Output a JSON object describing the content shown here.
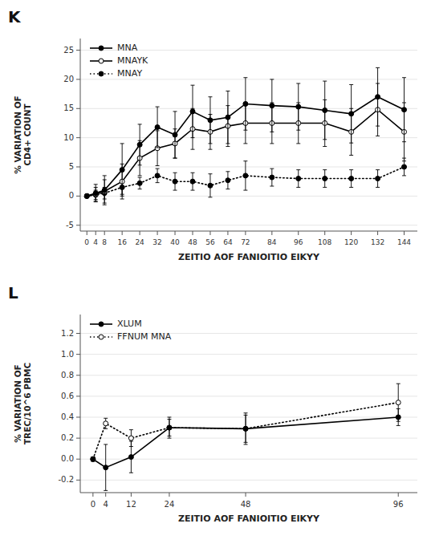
{
  "chart_data": [
    {
      "type": "line",
      "title": "K",
      "x_label": "ZEITIO AOF FANIOITIO EIKYY",
      "y_label": "% VARIATION OF\nCD4+ COUNT",
      "x": [
        0,
        4,
        8,
        16,
        24,
        32,
        40,
        48,
        56,
        64,
        72,
        84,
        96,
        108,
        120,
        132,
        144
      ],
      "series": [
        {
          "name": "MNA",
          "color": "#000000",
          "marker": "circle",
          "line_style": "solid",
          "values": [
            0,
            0.5,
            1.0,
            4.5,
            8.8,
            11.8,
            10.5,
            14.5,
            13.0,
            13.5,
            15.8,
            15.5,
            15.3,
            14.7,
            14.1,
            17.0,
            14.8
          ],
          "errors": [
            0.3,
            1.5,
            2.5,
            4.5,
            3.5,
            3.5,
            4.0,
            4.5,
            4.0,
            4.5,
            4.5,
            4.5,
            4.0,
            5.0,
            5.0,
            5.0,
            5.5
          ]
        },
        {
          "name": "MNAYK",
          "color": "#000000",
          "marker": "open-circle",
          "line_style": "solid",
          "values": [
            0,
            0.3,
            0.8,
            2.5,
            6.5,
            8.2,
            9.0,
            11.5,
            11.0,
            12.0,
            12.5,
            12.5,
            12.5,
            12.5,
            11.0,
            14.8,
            11.0
          ],
          "errors": [
            0.3,
            1.2,
            2.0,
            3.0,
            3.0,
            3.0,
            2.5,
            3.5,
            3.0,
            3.5,
            3.5,
            3.5,
            3.5,
            4.0,
            4.0,
            4.5,
            5.0
          ]
        },
        {
          "name": "MNAY",
          "color": "#000000",
          "marker": "circle",
          "line_style": "dotted",
          "values": [
            0,
            0.2,
            0.5,
            1.5,
            2.2,
            3.5,
            2.5,
            2.5,
            1.8,
            2.7,
            3.5,
            3.2,
            3.0,
            3.0,
            3.0,
            3.0,
            5.0
          ],
          "errors": [
            0.2,
            0.8,
            1.0,
            1.2,
            1.0,
            1.2,
            1.5,
            1.5,
            2.0,
            1.5,
            2.5,
            1.5,
            1.5,
            1.5,
            1.5,
            1.5,
            1.5
          ]
        }
      ],
      "xlim": [
        -3,
        150
      ],
      "xticks": [
        0,
        4,
        8,
        16,
        24,
        32,
        40,
        48,
        56,
        64,
        72,
        84,
        96,
        108,
        120,
        132,
        144
      ],
      "ylim": [
        -6,
        27
      ],
      "yticks": [
        -5,
        0,
        5,
        10,
        15,
        20,
        25
      ],
      "legend": "upper-left"
    },
    {
      "type": "line",
      "title": "L",
      "x_label": "ZEITIO AOF FANIOITIO EIKYY",
      "y_label": "% VARIATION OF\nTREC/10^6 PBMC",
      "x": [
        0,
        4,
        12,
        24,
        48,
        96
      ],
      "series": [
        {
          "name": "XLUM",
          "color": "#000000",
          "marker": "circle",
          "line_style": "solid",
          "values": [
            0.0,
            -0.08,
            0.02,
            0.3,
            0.29,
            0.4
          ],
          "errors": [
            0.02,
            0.22,
            0.15,
            0.08,
            0.13,
            0.08
          ]
        },
        {
          "name": "FFNUM MNA",
          "color": "#000000",
          "marker": "open-circle",
          "line_style": "dotted",
          "values": [
            0.0,
            0.34,
            0.2,
            0.3,
            0.29,
            0.54
          ],
          "errors": [
            0.02,
            0.05,
            0.08,
            0.1,
            0.15,
            0.18
          ]
        }
      ],
      "xlim": [
        -4,
        102
      ],
      "xticks": [
        0,
        4,
        12,
        24,
        48,
        96
      ],
      "ylim": [
        -0.32,
        1.38
      ],
      "yticks": [
        -0.2,
        {
          "value": 0,
          "label": "0.0"
        },
        0.2,
        0.4,
        0.6,
        0.8,
        {
          "value": 1,
          "label": "1.0"
        },
        1.2
      ],
      "legend": "upper-left"
    }
  ]
}
